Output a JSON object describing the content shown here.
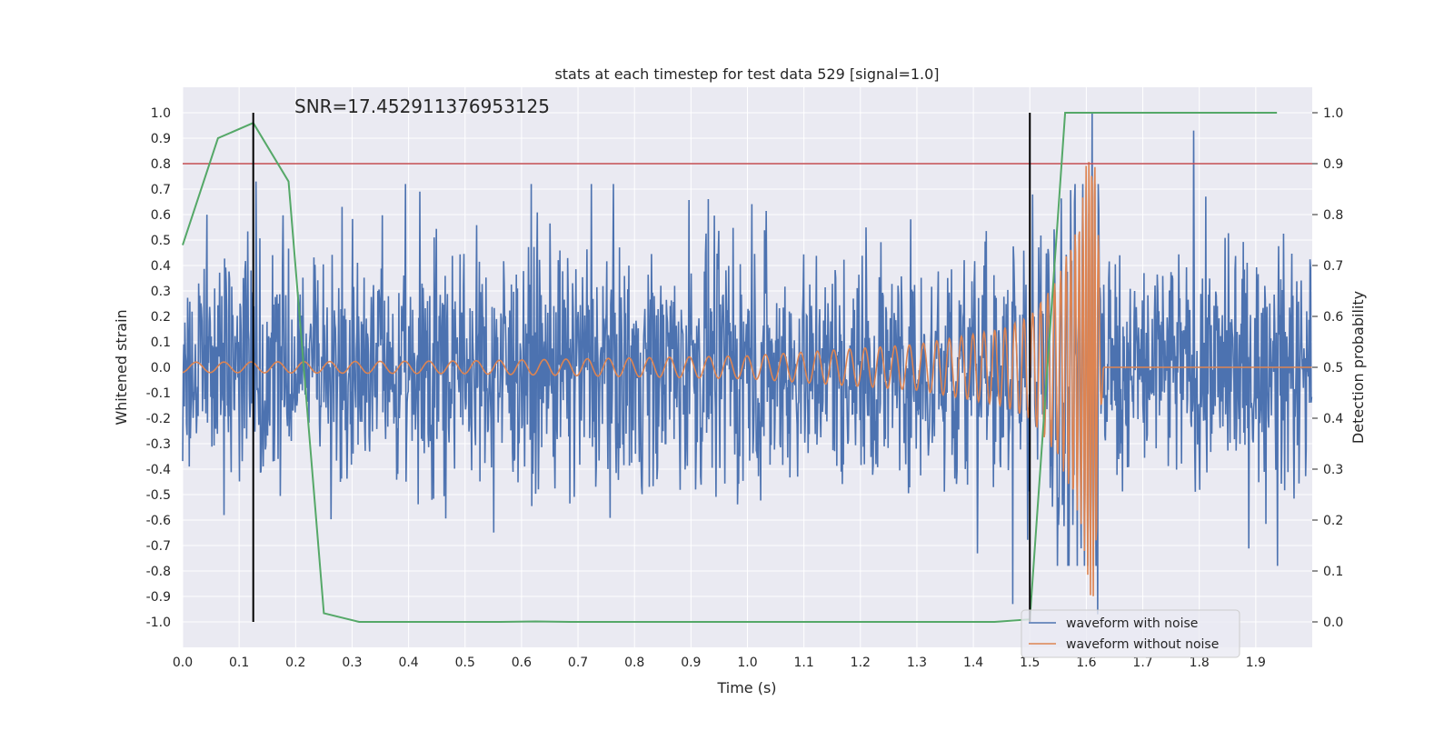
{
  "chart_data": {
    "type": "line",
    "title": "stats at each timestep for test data 529 [signal=1.0]",
    "annotation": "SNR=17.452911376953125",
    "xlabel": "Time (s)",
    "ylabel_left": "Whitened strain",
    "ylabel_right": "Detection probability",
    "xlim": [
      0.0,
      2.0
    ],
    "ylim_left": [
      -1.1,
      1.1
    ],
    "ylim_right": [
      -0.05,
      1.05
    ],
    "x_ticks": [
      "0.0",
      "0.1",
      "0.2",
      "0.3",
      "0.4",
      "0.5",
      "0.6",
      "0.7",
      "0.8",
      "0.9",
      "1.0",
      "1.1",
      "1.2",
      "1.3",
      "1.4",
      "1.5",
      "1.6",
      "1.7",
      "1.8",
      "1.9"
    ],
    "y_ticks_left": [
      "1.0",
      "0.9",
      "0.8",
      "0.7",
      "0.6",
      "0.5",
      "0.4",
      "0.3",
      "0.2",
      "0.1",
      "0.0",
      "-0.1",
      "-0.2",
      "-0.3",
      "-0.4",
      "-0.5",
      "-0.6",
      "-0.7",
      "-0.8",
      "-0.9",
      "-1.0"
    ],
    "y_ticks_right": [
      "1.0",
      "0.9",
      "0.8",
      "0.7",
      "0.6",
      "0.5",
      "0.4",
      "0.3",
      "0.2",
      "0.1",
      "0.0"
    ],
    "grid": true,
    "legend_position": "lower-right",
    "series": [
      {
        "name": "waveform with noise",
        "axis": "left",
        "color": "#4c72b0",
        "style": "dense noisy trace, amplitude mostly between -0.6 and 0.6, isolated spikes reaching about 1.0 near t=1.61 and -0.97 near t=1.62",
        "amplitude_typical": 0.3,
        "peaks": [
          [
            0.13,
            0.73
          ],
          [
            0.42,
            0.69
          ],
          [
            1.47,
            -0.93
          ],
          [
            1.61,
            1.0
          ],
          [
            1.62,
            -0.97
          ],
          [
            1.79,
            0.93
          ]
        ]
      },
      {
        "name": "waveform without noise",
        "axis": "left",
        "color": "#dd8452",
        "style": "chirp: oscillation of growing amplitude and frequency, merger near t=1.61 then flat at 0",
        "x": [
          0.0,
          0.5,
          1.0,
          1.3,
          1.45,
          1.5,
          1.55,
          1.59,
          1.605,
          1.615,
          1.63,
          1.99
        ],
        "amplitude": [
          0.02,
          0.025,
          0.045,
          0.09,
          0.15,
          0.2,
          0.35,
          0.6,
          0.9,
          0.9,
          0.0,
          0.0
        ],
        "frequency_hz": [
          20,
          24,
          30,
          40,
          55,
          65,
          90,
          150,
          200,
          200,
          0,
          0
        ]
      },
      {
        "axis": "right",
        "color": "#55a868",
        "x": [
          0.0,
          0.0625,
          0.125,
          0.1875,
          0.25,
          0.3125,
          0.375,
          0.4375,
          0.5,
          0.5625,
          0.625,
          0.6875,
          0.75,
          0.8125,
          0.875,
          0.9375,
          1.0,
          1.0625,
          1.125,
          1.1875,
          1.25,
          1.3125,
          1.375,
          1.4375,
          1.5,
          1.5625,
          1.625,
          1.6875,
          1.75,
          1.8125,
          1.875,
          1.9375
        ],
        "y": [
          0.74,
          0.95,
          0.98,
          0.865,
          0.017,
          0.0,
          0.0,
          0.0,
          0.0,
          0.0,
          0.001,
          0.0,
          0.0,
          0.0,
          0.0,
          0.0,
          0.0,
          0.0,
          0.0,
          0.0,
          0.0,
          0.0,
          0.0,
          0.0,
          0.005,
          1.0,
          1.0,
          1.0,
          1.0,
          1.0,
          1.0,
          1.0
        ]
      }
    ],
    "threshold_line": {
      "axis": "right",
      "value": 0.9,
      "color": "#c44e52"
    },
    "vertical_markers": [
      {
        "x": 0.125,
        "y_range": [
          -1.0,
          1.0
        ],
        "color": "#000000"
      },
      {
        "x": 1.5,
        "y_range": [
          -1.0,
          1.0
        ],
        "color": "#000000"
      }
    ]
  }
}
